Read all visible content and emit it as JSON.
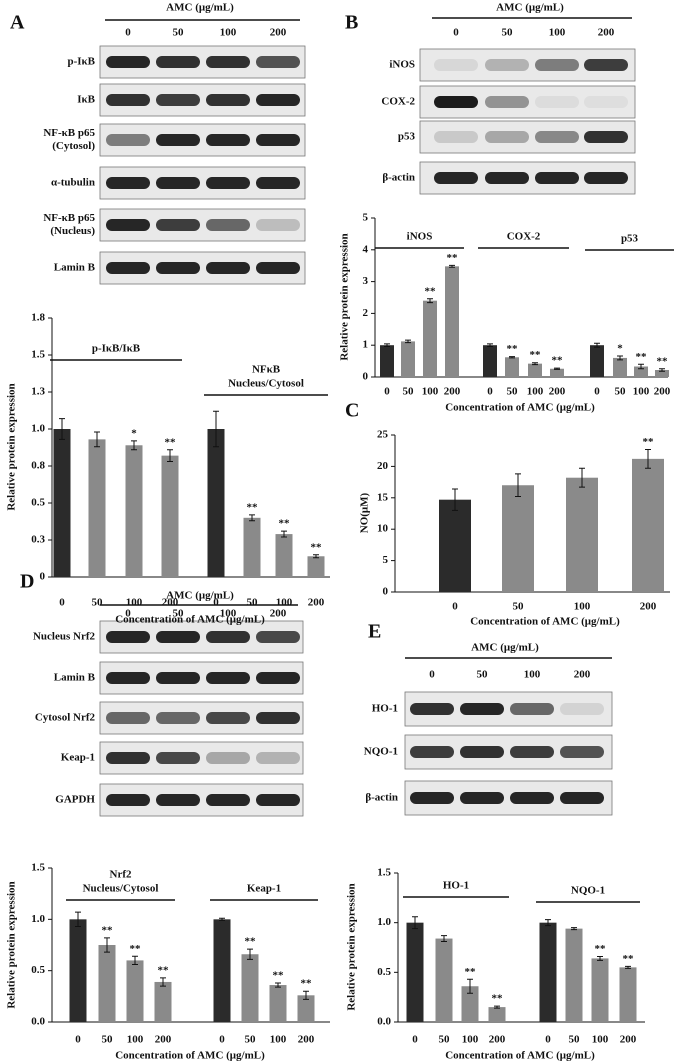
{
  "blots": [
    {
      "panel_label": "A",
      "header": "AMC  (μg/mL)",
      "concentrations": [
        "0",
        "50",
        "100",
        "200"
      ],
      "rows": [
        [
          "p-IκB"
        ],
        [
          "IκB"
        ],
        [
          "NF-κB p65",
          "(Cytosol)"
        ],
        [
          "α-tubulin"
        ],
        [
          "NF-κB p65",
          "(Nucleus)"
        ],
        [
          "Lamin B"
        ]
      ]
    },
    {
      "panel_label": "B",
      "header": "AMC  (μg/mL)",
      "concentrations": [
        "0",
        "50",
        "100",
        "200"
      ],
      "rows": [
        [
          "iNOS"
        ],
        [
          "COX-2"
        ],
        [
          "p53"
        ],
        [
          "β-actin"
        ]
      ]
    },
    {
      "panel_label": "D",
      "header": "AMC (μg/mL)",
      "concentrations": [
        "0",
        "50",
        "100",
        "200"
      ],
      "rows": [
        [
          "Nucleus Nrf2"
        ],
        [
          "Lamin B"
        ],
        [
          "Cytosol Nrf2"
        ],
        [
          "Keap-1"
        ],
        [
          "GAPDH"
        ]
      ]
    },
    {
      "panel_label": "E",
      "header": "AMC (μg/mL)",
      "concentrations": [
        "0",
        "50",
        "100",
        "200"
      ],
      "rows": [
        [
          "HO-1"
        ],
        [
          "NQO-1"
        ],
        [
          "β-actin"
        ]
      ]
    }
  ],
  "chart_data": [
    {
      "type": "bar",
      "ylabel": "Relative protein expression",
      "xlabel": "Concentration  of AMC (μg/mL)",
      "ylim": [
        0,
        1.75
      ],
      "yticks": [
        0,
        {
          "value": 0.25,
          "label": "0.3"
        },
        0.5,
        {
          "value": 0.75,
          "label": "0.8"
        },
        {
          "value": 1,
          "label": "1.0"
        },
        {
          "value": 1.25,
          "label": "1.3"
        },
        1.5,
        {
          "value": 1.75,
          "label": "1.8"
        }
      ],
      "colors": [
        "#2b2b2b",
        "#8a8a8a",
        "#8a8a8a",
        "#8a8a8a"
      ],
      "groups": [
        {
          "title": [
            "p-IκB/IκB"
          ],
          "categories": [
            "0",
            "50",
            "100",
            "200"
          ],
          "values": [
            1.0,
            0.93,
            0.89,
            0.82
          ],
          "errors": [
            0.07,
            0.05,
            0.03,
            0.04
          ],
          "significance": [
            null,
            null,
            "*",
            "**"
          ]
        },
        {
          "title": [
            "NFκB",
            "Nucleus/Cytosol"
          ],
          "categories": [
            "0",
            "50",
            "100",
            "200"
          ],
          "values": [
            1.0,
            0.4,
            0.29,
            0.14
          ],
          "errors": [
            0.12,
            0.02,
            0.02,
            0.01
          ],
          "significance": [
            null,
            "**",
            "**",
            "**"
          ]
        }
      ]
    },
    {
      "type": "bar",
      "ylabel": "Relative protein expression",
      "xlabel": "Concentration  of AMC (μg/mL)",
      "ylim": [
        0,
        5
      ],
      "yticks": [
        0,
        1,
        2,
        3,
        4,
        5
      ],
      "colors": [
        "#2b2b2b",
        "#8a8a8a",
        "#8a8a8a",
        "#8a8a8a"
      ],
      "groups": [
        {
          "title": [
            "iNOS"
          ],
          "categories": [
            "0",
            "50",
            "100",
            "200"
          ],
          "values": [
            1.0,
            1.12,
            2.4,
            3.48
          ],
          "errors": [
            0.04,
            0.04,
            0.06,
            0.03
          ],
          "significance": [
            null,
            null,
            "**",
            "**"
          ]
        },
        {
          "title": [
            "COX-2"
          ],
          "categories": [
            "0",
            "50",
            "100",
            "200"
          ],
          "values": [
            1.0,
            0.62,
            0.42,
            0.26
          ],
          "errors": [
            0.04,
            0.02,
            0.03,
            0.02
          ],
          "significance": [
            null,
            "**",
            "**",
            "**"
          ]
        },
        {
          "title": [
            "p53"
          ],
          "categories": [
            "0",
            "50",
            "100",
            "200"
          ],
          "values": [
            1.0,
            0.6,
            0.33,
            0.22
          ],
          "errors": [
            0.06,
            0.06,
            0.07,
            0.04
          ],
          "significance": [
            null,
            "*",
            "**",
            "**"
          ]
        }
      ]
    },
    {
      "type": "bar",
      "panel_label": "C",
      "ylabel": "NO(μM)",
      "xlabel": "Concentration of AMC (μg/mL)",
      "ylim": [
        0,
        25
      ],
      "yticks": [
        0,
        5,
        10,
        15,
        20,
        25
      ],
      "colors": [
        "#2b2b2b",
        "#8a8a8a",
        "#8a8a8a",
        "#8a8a8a"
      ],
      "groups": [
        {
          "categories": [
            "0",
            "50",
            "100",
            "200"
          ],
          "values": [
            14.7,
            17.0,
            18.2,
            21.2
          ],
          "errors": [
            1.7,
            1.8,
            1.5,
            1.5
          ],
          "significance": [
            null,
            null,
            null,
            "**"
          ]
        }
      ]
    },
    {
      "type": "bar",
      "ylabel": "Relative protein expression",
      "xlabel": "Concentration  of AMC (μg/mL)",
      "ylim": [
        0,
        1.5
      ],
      "yticks": [
        {
          "value": 0,
          "label": "0.0"
        },
        0.5,
        {
          "value": 1,
          "label": "1.0"
        },
        1.5
      ],
      "colors": [
        "#2b2b2b",
        "#8a8a8a",
        "#8a8a8a",
        "#8a8a8a"
      ],
      "groups": [
        {
          "title": [
            "Nrf2",
            "Nucleus/Cytosol"
          ],
          "categories": [
            "0",
            "50",
            "100",
            "200"
          ],
          "values": [
            1.0,
            0.75,
            0.6,
            0.39
          ],
          "errors": [
            0.07,
            0.07,
            0.04,
            0.04
          ],
          "significance": [
            null,
            "**",
            "**",
            "**"
          ]
        },
        {
          "title": [
            "Keap-1"
          ],
          "categories": [
            "0",
            "50",
            "100",
            "200"
          ],
          "values": [
            1.0,
            0.66,
            0.36,
            0.26
          ],
          "errors": [
            0.01,
            0.05,
            0.02,
            0.04
          ],
          "significance": [
            null,
            "**",
            "**",
            "**"
          ]
        }
      ]
    },
    {
      "type": "bar",
      "ylabel": "Relative protein expression",
      "xlabel": "Concentration  of AMC (μg/mL)",
      "ylim": [
        0,
        1.5
      ],
      "yticks": [
        {
          "value": 0,
          "label": "0.0"
        },
        0.5,
        {
          "value": 1,
          "label": "1.0"
        },
        1.5
      ],
      "colors": [
        "#2b2b2b",
        "#8a8a8a",
        "#8a8a8a",
        "#8a8a8a"
      ],
      "groups": [
        {
          "title": [
            "HO-1"
          ],
          "categories": [
            "0",
            "50",
            "100",
            "200"
          ],
          "values": [
            1.0,
            0.84,
            0.36,
            0.15
          ],
          "errors": [
            0.06,
            0.03,
            0.07,
            0.01
          ],
          "significance": [
            null,
            null,
            "**",
            "**"
          ]
        },
        {
          "title": [
            "NQO-1"
          ],
          "categories": [
            "0",
            "50",
            "100",
            "200"
          ],
          "values": [
            1.0,
            0.94,
            0.64,
            0.55
          ],
          "errors": [
            0.03,
            0.01,
            0.02,
            0.01
          ],
          "significance": [
            null,
            null,
            "**",
            "**"
          ]
        }
      ]
    }
  ]
}
